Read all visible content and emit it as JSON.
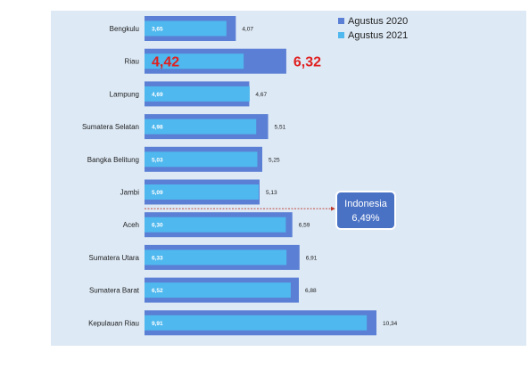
{
  "chart_data": {
    "type": "bar",
    "orientation": "horizontal",
    "categories": [
      "Bengkulu",
      "Riau",
      "Lampung",
      "Sumatera Selatan",
      "Bangka Belitung",
      "Jambi",
      "Aceh",
      "Sumatera Utara",
      "Sumatera Barat",
      "Kepulauan Riau"
    ],
    "series": [
      {
        "name": "Agustus 2020",
        "color": "#5b7fd4",
        "values": [
          4.07,
          6.32,
          4.67,
          5.51,
          5.25,
          5.13,
          6.59,
          6.91,
          6.88,
          10.34
        ],
        "labels": [
          "4,07",
          "6,32",
          "4,67",
          "5,51",
          "5,25",
          "5,13",
          "6,59",
          "6,91",
          "6,88",
          "10,34"
        ]
      },
      {
        "name": "Agustus 2021",
        "color": "#4fb8ee",
        "values": [
          3.65,
          4.42,
          4.69,
          4.98,
          5.03,
          5.09,
          6.3,
          6.33,
          6.52,
          9.91
        ],
        "labels": [
          "3,65",
          "4,42",
          "4,69",
          "4,98",
          "5,03",
          "5,09",
          "6,30",
          "6,33",
          "6,52",
          "9,91"
        ]
      }
    ],
    "highlight_category": "Riau",
    "highlight_color": "#e02020",
    "reference_line": {
      "value": 6.49,
      "label_line1": "Indonesia",
      "label_line2": "6,49%",
      "color": "#c0392b",
      "box_color": "#4a72c4"
    },
    "xlim": [
      0,
      10.34
    ],
    "grid": false,
    "legend_position": "top-right"
  }
}
